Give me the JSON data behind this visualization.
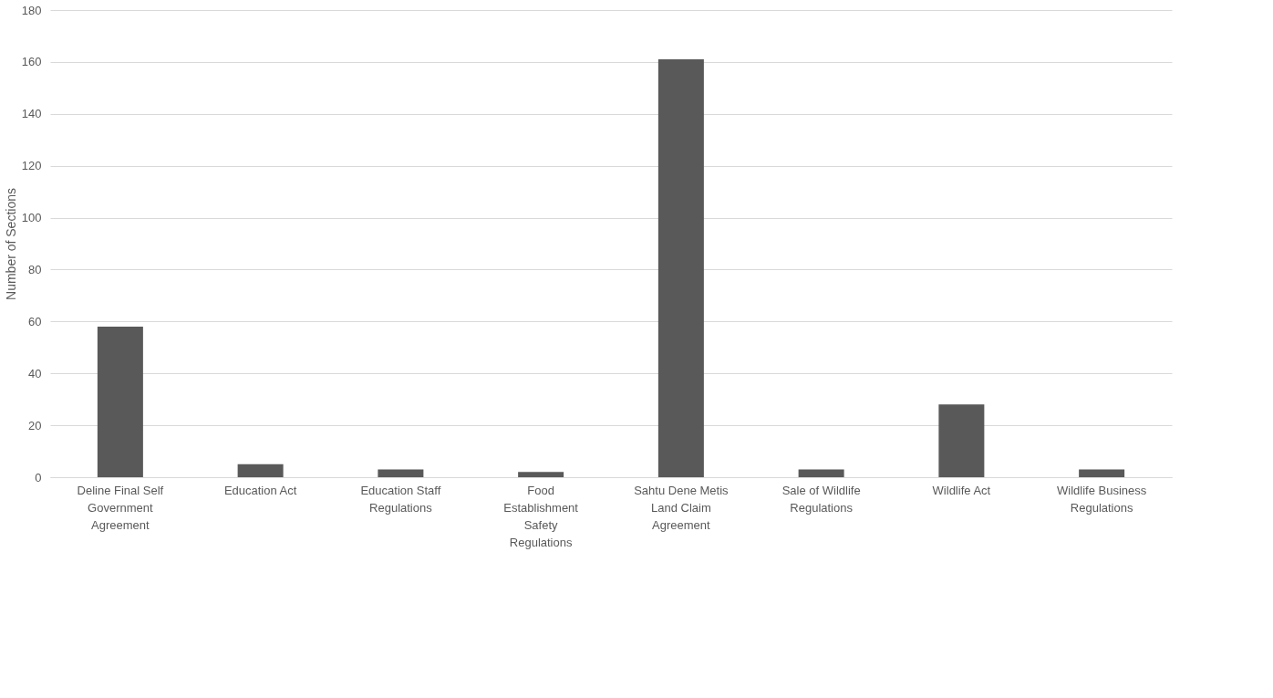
{
  "chart_data": {
    "type": "bar",
    "ylabel": "Number of Sections",
    "categories": [
      "Deline Final Self Government Agreement",
      "Education Act",
      "Education Staff Regulations",
      "Food Establishment Safety Regulations",
      "Sahtu Dene Metis Land Claim Agreement",
      "Sale of Wildlife Regulations",
      "Wildlife Act",
      "Wildlife Business Regulations"
    ],
    "values": [
      58,
      5,
      3,
      2,
      161,
      3,
      28,
      3
    ],
    "color": "#595959",
    "ylim": [
      0,
      180
    ],
    "yticks": [
      0,
      20,
      40,
      60,
      80,
      100,
      120,
      140,
      160,
      180
    ],
    "grid": "y"
  }
}
